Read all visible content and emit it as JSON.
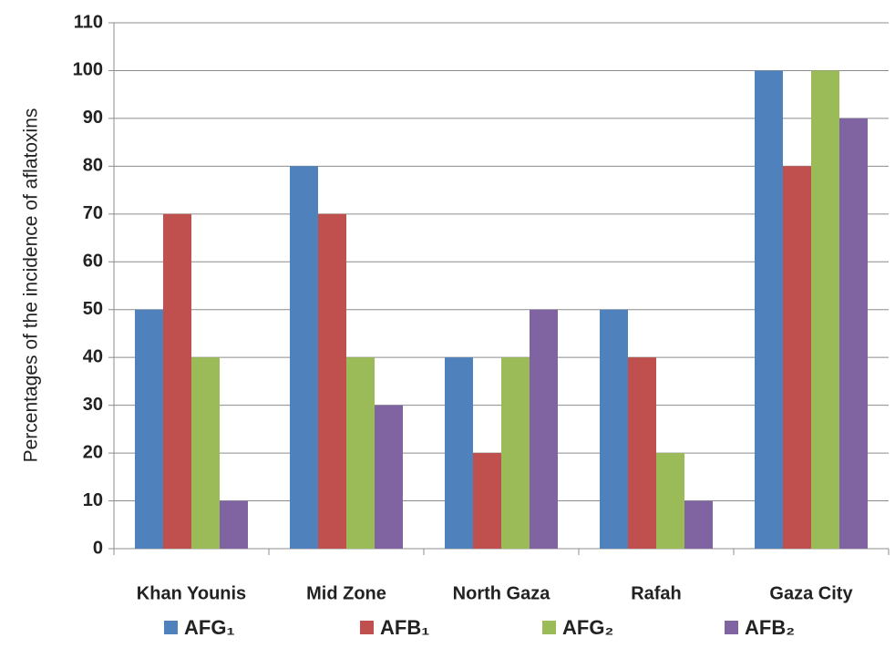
{
  "chart_data": {
    "type": "bar",
    "y_axis_label": "Percentages of the incidence of aflatoxins",
    "categories": [
      "Khan Younis",
      "Mid Zone",
      "North Gaza",
      "Rafah",
      "Gaza City"
    ],
    "series": [
      {
        "name": "AFG₁",
        "color": "#4f81bd",
        "values": [
          50,
          80,
          40,
          50,
          100
        ]
      },
      {
        "name": "AFB₁",
        "color": "#c0504d",
        "values": [
          70,
          70,
          20,
          40,
          80
        ]
      },
      {
        "name": "AFG₂",
        "color": "#9bbb59",
        "values": [
          40,
          40,
          40,
          20,
          100
        ]
      },
      {
        "name": "AFB₂",
        "color": "#8064a2",
        "values": [
          10,
          30,
          50,
          10,
          90
        ]
      }
    ],
    "ylim": [
      0,
      110
    ],
    "yticks": [
      0,
      10,
      20,
      30,
      40,
      50,
      60,
      70,
      80,
      90,
      100,
      110
    ],
    "grid": true,
    "legend": "bottom"
  }
}
